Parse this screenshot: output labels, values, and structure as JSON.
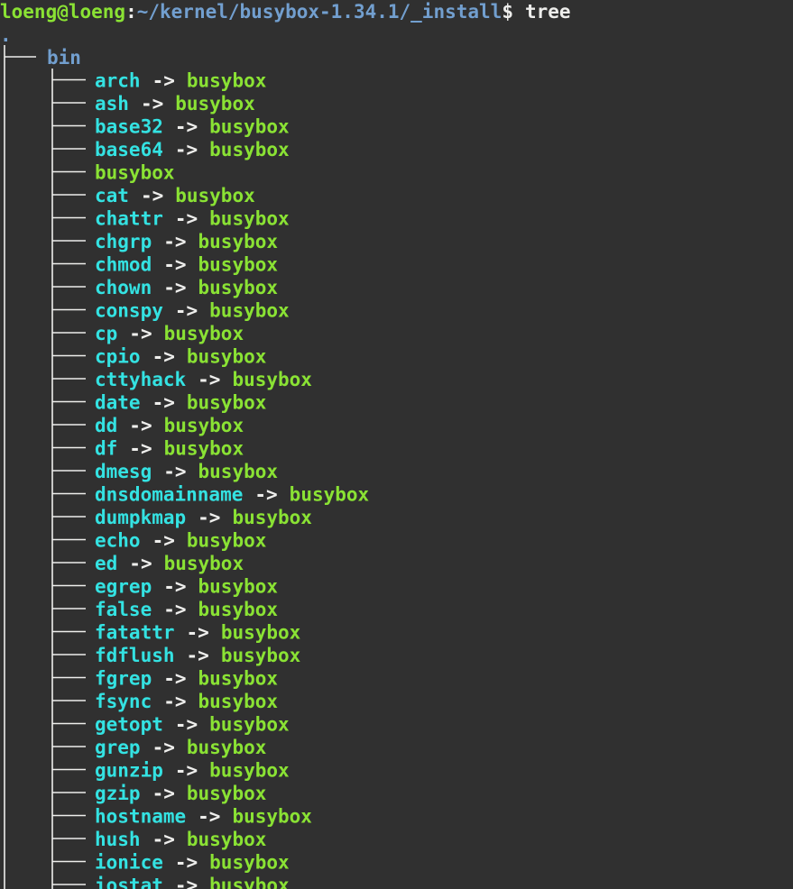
{
  "prompt": {
    "user_host": "loeng@loeng",
    "separator": ":",
    "path": "~/kernel/busybox-1.34.1/_install",
    "symbol": "$",
    "command": "tree"
  },
  "tree": {
    "root": ".",
    "dir": "bin",
    "entries": [
      {
        "name": "arch",
        "arrow": "->",
        "target": "busybox"
      },
      {
        "name": "ash",
        "arrow": "->",
        "target": "busybox"
      },
      {
        "name": "base32",
        "arrow": "->",
        "target": "busybox"
      },
      {
        "name": "base64",
        "arrow": "->",
        "target": "busybox"
      },
      {
        "name": "busybox"
      },
      {
        "name": "cat",
        "arrow": "->",
        "target": "busybox"
      },
      {
        "name": "chattr",
        "arrow": "->",
        "target": "busybox"
      },
      {
        "name": "chgrp",
        "arrow": "->",
        "target": "busybox"
      },
      {
        "name": "chmod",
        "arrow": "->",
        "target": "busybox"
      },
      {
        "name": "chown",
        "arrow": "->",
        "target": "busybox"
      },
      {
        "name": "conspy",
        "arrow": "->",
        "target": "busybox"
      },
      {
        "name": "cp",
        "arrow": "->",
        "target": "busybox"
      },
      {
        "name": "cpio",
        "arrow": "->",
        "target": "busybox"
      },
      {
        "name": "cttyhack",
        "arrow": "->",
        "target": "busybox"
      },
      {
        "name": "date",
        "arrow": "->",
        "target": "busybox"
      },
      {
        "name": "dd",
        "arrow": "->",
        "target": "busybox"
      },
      {
        "name": "df",
        "arrow": "->",
        "target": "busybox"
      },
      {
        "name": "dmesg",
        "arrow": "->",
        "target": "busybox"
      },
      {
        "name": "dnsdomainname",
        "arrow": "->",
        "target": "busybox"
      },
      {
        "name": "dumpkmap",
        "arrow": "->",
        "target": "busybox"
      },
      {
        "name": "echo",
        "arrow": "->",
        "target": "busybox"
      },
      {
        "name": "ed",
        "arrow": "->",
        "target": "busybox"
      },
      {
        "name": "egrep",
        "arrow": "->",
        "target": "busybox"
      },
      {
        "name": "false",
        "arrow": "->",
        "target": "busybox"
      },
      {
        "name": "fatattr",
        "arrow": "->",
        "target": "busybox"
      },
      {
        "name": "fdflush",
        "arrow": "->",
        "target": "busybox"
      },
      {
        "name": "fgrep",
        "arrow": "->",
        "target": "busybox"
      },
      {
        "name": "fsync",
        "arrow": "->",
        "target": "busybox"
      },
      {
        "name": "getopt",
        "arrow": "->",
        "target": "busybox"
      },
      {
        "name": "grep",
        "arrow": "->",
        "target": "busybox"
      },
      {
        "name": "gunzip",
        "arrow": "->",
        "target": "busybox"
      },
      {
        "name": "gzip",
        "arrow": "->",
        "target": "busybox"
      },
      {
        "name": "hostname",
        "arrow": "->",
        "target": "busybox"
      },
      {
        "name": "hush",
        "arrow": "->",
        "target": "busybox"
      },
      {
        "name": "ionice",
        "arrow": "->",
        "target": "busybox"
      },
      {
        "name": "iostat",
        "arrow": "->",
        "target": "busybox"
      }
    ]
  }
}
